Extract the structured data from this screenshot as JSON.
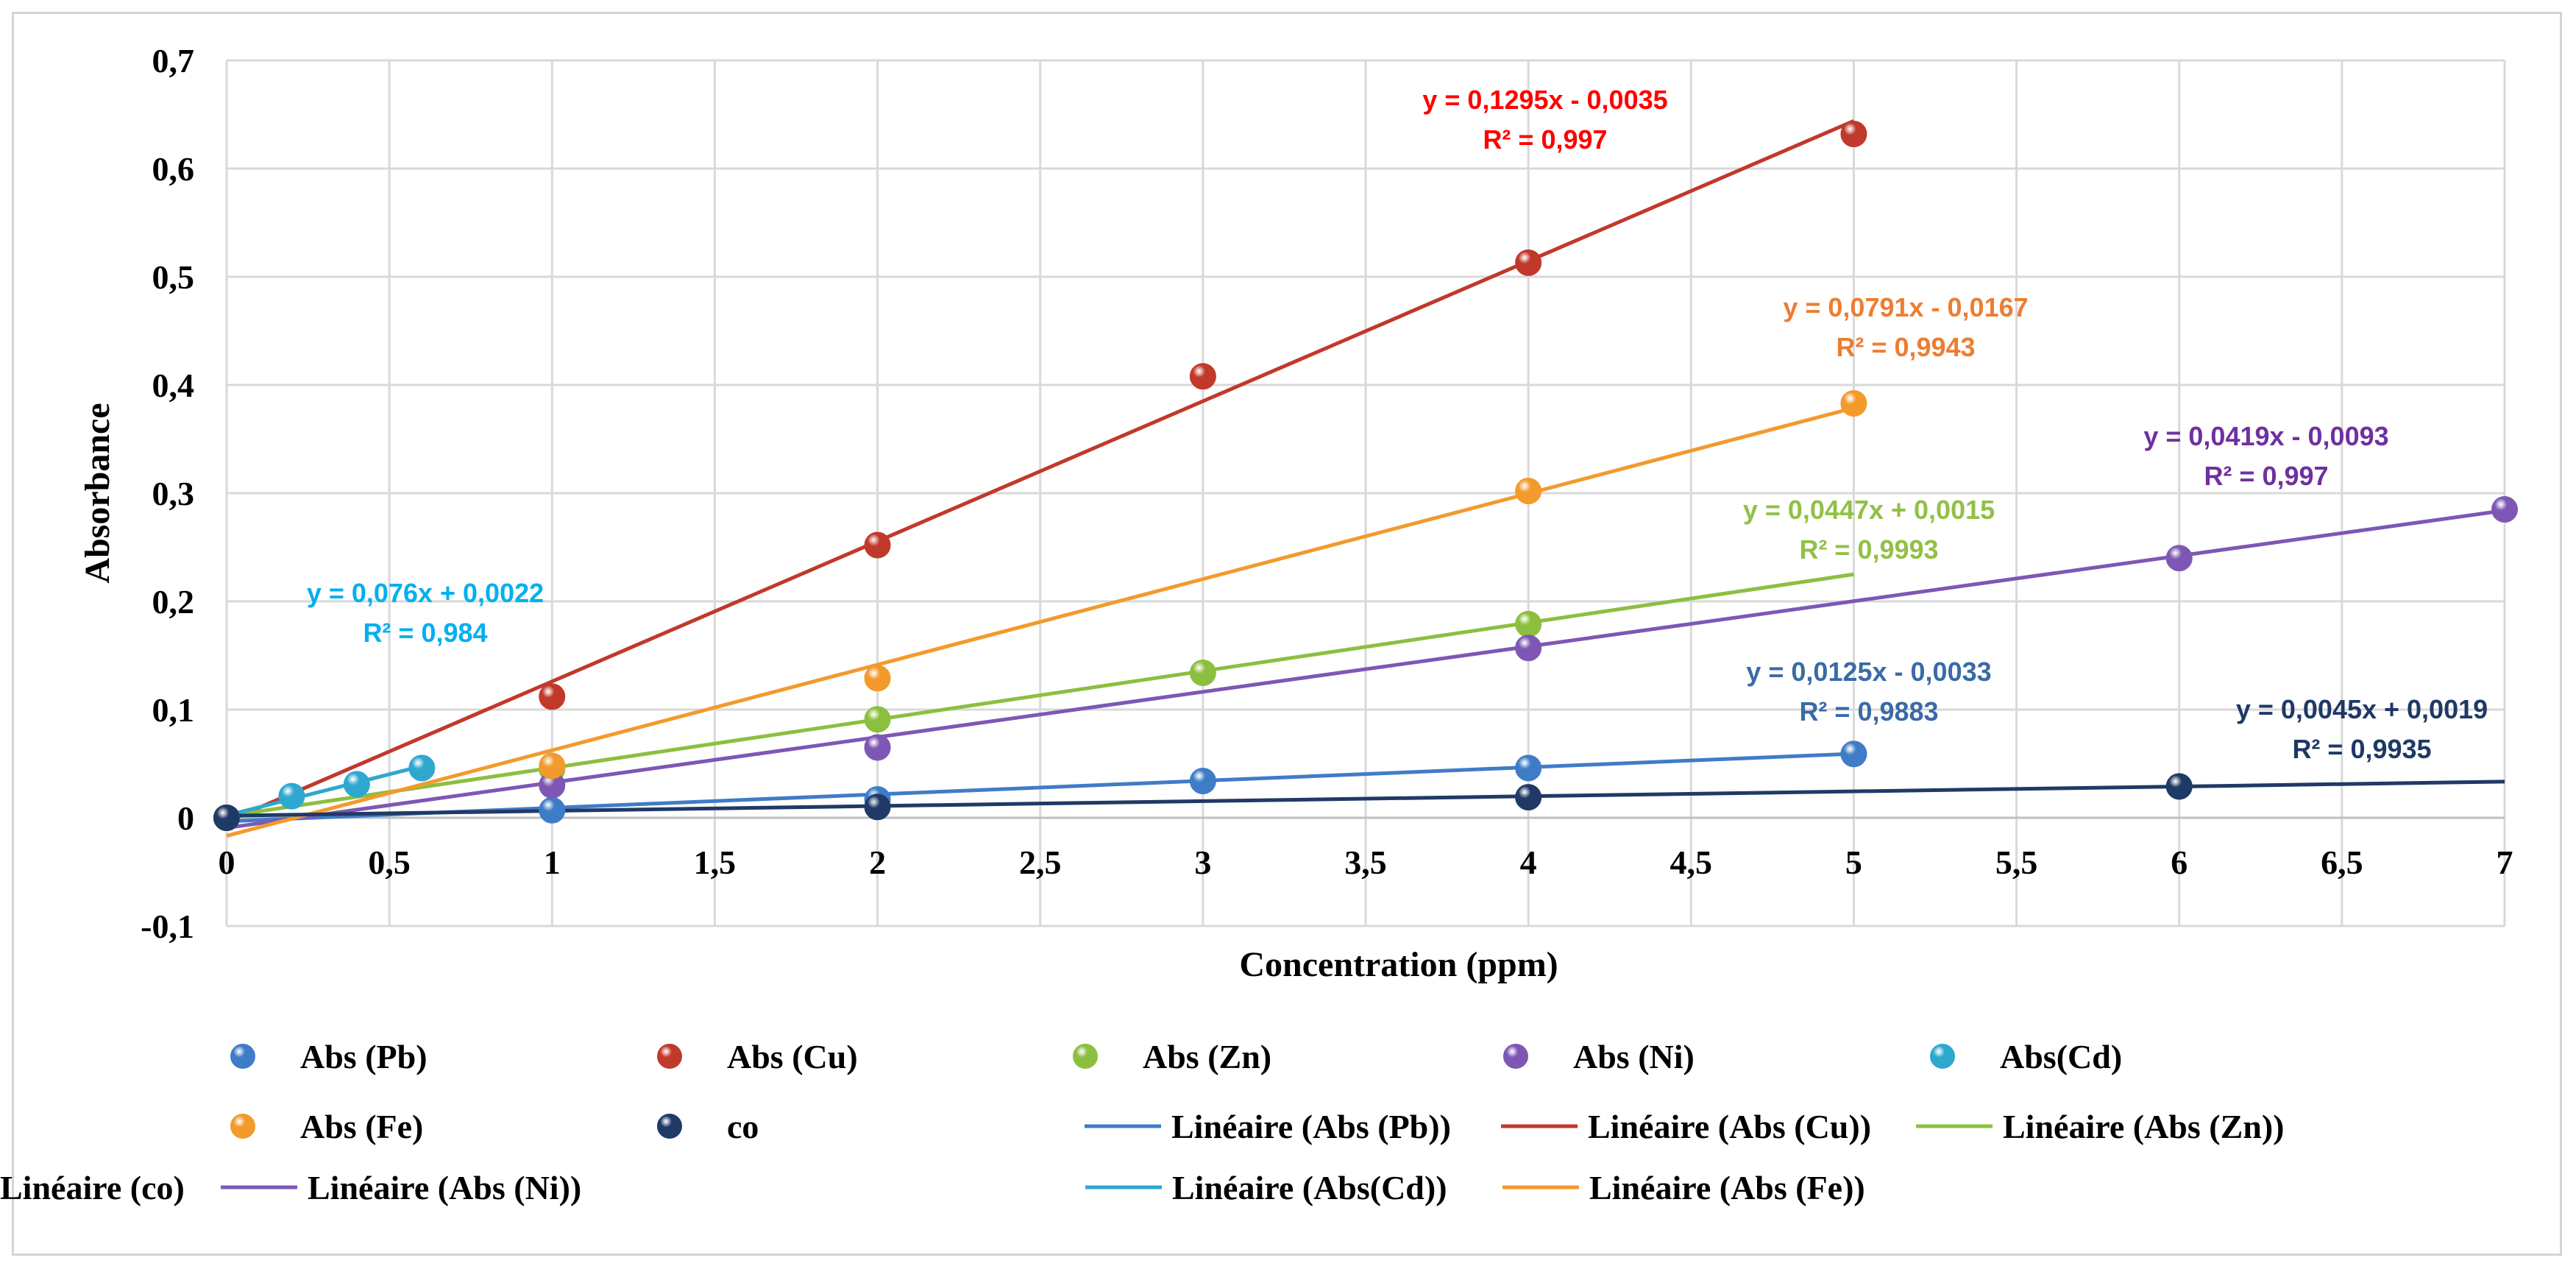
{
  "chart_data": {
    "type": "scatter",
    "xlabel": "Concentration (ppm)",
    "ylabel": "Absorbance",
    "xlim": [
      0,
      7
    ],
    "ylim": [
      -0.1,
      0.7
    ],
    "x_tick_labels": [
      "0",
      "0,5",
      "1",
      "1,5",
      "2",
      "2,5",
      "3",
      "3,5",
      "4",
      "4,5",
      "5",
      "5,5",
      "6",
      "6,5",
      "7"
    ],
    "y_tick_labels": [
      "-0,1",
      "0",
      "0,1",
      "0,2",
      "0,3",
      "0,4",
      "0,5",
      "0,6",
      "0,7"
    ],
    "grid": true,
    "legend_position": "bottom",
    "series": [
      {
        "name": "Abs (Pb)",
        "color": "#3f7cc8",
        "x": [
          0,
          1,
          2,
          3,
          4,
          5
        ],
        "y": [
          0,
          0.007,
          0.017,
          0.034,
          0.046,
          0.059
        ],
        "trendline": {
          "legend": "Linéaire (Abs (Pb))",
          "slope": 0.0125,
          "intercept": -0.0033,
          "x_range": [
            0,
            5
          ],
          "equation": "y = 0,0125x - 0,0033",
          "r2": "R² = 0,9883",
          "label_color": "#3a6aa6"
        }
      },
      {
        "name": "Abs (Cu)",
        "color": "#c0392b",
        "x": [
          0,
          1,
          2,
          3,
          4,
          5
        ],
        "y": [
          0,
          0.112,
          0.252,
          0.408,
          0.513,
          0.632
        ],
        "trendline": {
          "legend": "Linéaire (Abs (Cu))",
          "slope": 0.1295,
          "intercept": -0.0035,
          "x_range": [
            0,
            5
          ],
          "equation": "y = 0,1295x - 0,0035",
          "r2": "R² = 0,997",
          "label_color": "#ff0000"
        }
      },
      {
        "name": "Abs (Zn)",
        "color": "#8cbf3f",
        "x": [
          0,
          1,
          2,
          3,
          4
        ],
        "y": [
          0,
          0.045,
          0.091,
          0.134,
          0.179
        ],
        "trendline": {
          "legend": "Linéaire (Abs (Zn))",
          "slope": 0.0447,
          "intercept": 0.0015,
          "x_range": [
            0,
            5
          ],
          "equation": "y = 0,0447x + 0,0015",
          "r2": "R² = 0,9993",
          "label_color": "#92c047"
        }
      },
      {
        "name": "Abs (Ni)",
        "color": "#7e57b5",
        "x": [
          0,
          1,
          2,
          4,
          6,
          7
        ],
        "y": [
          0,
          0.03,
          0.065,
          0.157,
          0.24,
          0.285
        ],
        "trendline": {
          "legend": "Linéaire (Abs (Ni))",
          "slope": 0.0419,
          "intercept": -0.0093,
          "x_range": [
            0,
            7
          ],
          "equation": "y = 0,0419x - 0,0093",
          "r2": "R² = 0,997",
          "label_color": "#7030a0"
        }
      },
      {
        "name": "Abs(Cd)",
        "color": "#2ea8cf",
        "x": [
          0,
          0.2,
          0.4,
          0.6
        ],
        "y": [
          0,
          0.02,
          0.031,
          0.046
        ],
        "trendline": {
          "legend": "Linéaire (Abs(Cd))",
          "slope": 0.076,
          "intercept": 0.0022,
          "x_range": [
            0,
            0.6
          ],
          "equation": "y = 0,076x + 0,0022",
          "r2": "R² = 0,984",
          "label_color": "#00b0f0"
        }
      },
      {
        "name": "Abs (Fe)",
        "color": "#f39a2c",
        "x": [
          0,
          1,
          2,
          4,
          5
        ],
        "y": [
          0,
          0.048,
          0.129,
          0.302,
          0.383
        ],
        "trendline": {
          "legend": "Linéaire (Abs (Fe))",
          "slope": 0.0791,
          "intercept": -0.0167,
          "x_range": [
            0,
            5
          ],
          "equation": "y = 0,0791x - 0,0167",
          "r2": "R² = 0,9943",
          "label_color": "#ed7d31"
        }
      },
      {
        "name": "co",
        "color": "#1f3a66",
        "x": [
          0,
          2,
          4,
          6
        ],
        "y": [
          0,
          0.01,
          0.019,
          0.029
        ],
        "trendline": {
          "legend": "Linéaire (co)",
          "slope": 0.0045,
          "intercept": 0.0019,
          "x_range": [
            0,
            7
          ],
          "equation": "y = 0,0045x + 0,0019",
          "r2": "R² = 0,9935",
          "label_color": "#1f3864"
        }
      }
    ]
  }
}
